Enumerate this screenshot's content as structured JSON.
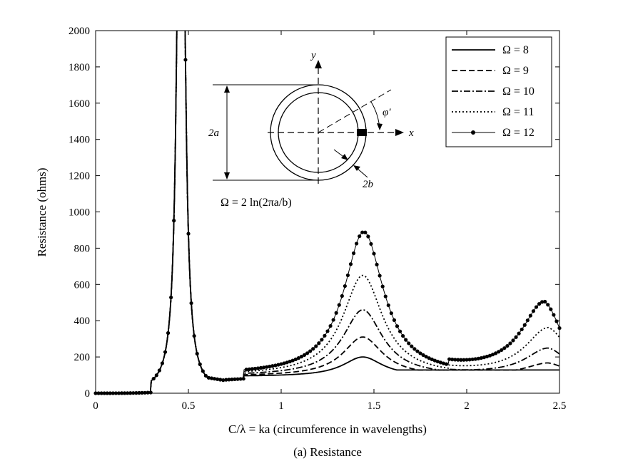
{
  "chart_data": {
    "type": "line",
    "caption": "(a) Resistance",
    "xlabel": "C/λ = ka (circumference in wavelengths)",
    "ylabel": "Resistance (ohms)",
    "xlim": [
      0,
      2.5
    ],
    "ylim": [
      0,
      2000
    ],
    "xticks": [
      0,
      0.5,
      1,
      1.5,
      2,
      2.5
    ],
    "xtick_labels": [
      "0",
      "0.5",
      "1",
      "1.5",
      "2",
      "2.5"
    ],
    "yticks": [
      0,
      200,
      400,
      600,
      800,
      1000,
      1200,
      1400,
      1600,
      1800,
      2000
    ],
    "ytick_labels": [
      "0",
      "200",
      "400",
      "600",
      "800",
      "1000",
      "1200",
      "1400",
      "1600",
      "1800",
      "2000"
    ],
    "legend_position": "top-right",
    "grid": false,
    "series": [
      {
        "name": "Ω = 8",
        "style": "solid",
        "lp1": 200,
        "p1x": 1.44,
        "lv": 108,
        "lp2": 128,
        "p2x": 2.42,
        "tailEnd": 125
      },
      {
        "name": "Ω = 9",
        "style": "dashed",
        "lp1": 310,
        "p1x": 1.44,
        "lv": 110,
        "lp2": 180,
        "p2x": 2.44,
        "tailEnd": 172
      },
      {
        "name": "Ω = 10",
        "style": "dashdot",
        "lp1": 460,
        "p1x": 1.44,
        "lv": 112,
        "lp2": 260,
        "p2x": 2.44,
        "tailEnd": 248
      },
      {
        "name": "Ω = 11",
        "style": "dotted",
        "lp1": 650,
        "p1x": 1.44,
        "lv": 114,
        "lp2": 370,
        "p2x": 2.44,
        "tailEnd": 352
      },
      {
        "name": "Ω = 12",
        "style": "marker",
        "lp1": 890,
        "p1x": 1.445,
        "lv": 116,
        "lp2": 510,
        "p2x": 2.42,
        "tailEnd": 452
      }
    ],
    "inset": {
      "y_label": "y",
      "x_label": "x",
      "angle_label": "φ′",
      "dim_a": "2a",
      "dim_b": "2b",
      "formula": "Ω = 2 ln(2πa/b)"
    }
  }
}
